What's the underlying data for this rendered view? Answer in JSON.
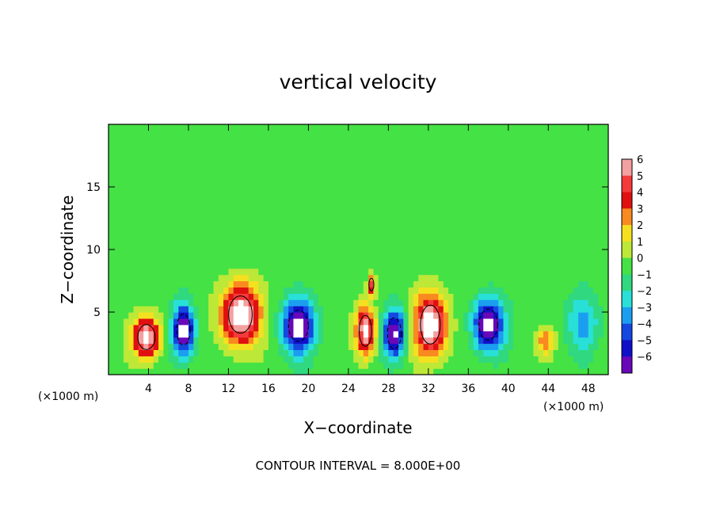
{
  "chart_data": {
    "type": "heatmap",
    "title": "vertical velocity",
    "xlabel": "X−coordinate",
    "ylabel": "Z−coordinate",
    "x_unit_left": "(×1000 m)",
    "x_unit_right": "(×1000 m)",
    "xlim": [
      0,
      50
    ],
    "ylim": [
      0,
      20
    ],
    "x_ticks": [
      4,
      8,
      12,
      16,
      20,
      24,
      28,
      32,
      36,
      40,
      44,
      48
    ],
    "y_ticks": [
      5,
      10,
      15
    ],
    "colorbar": {
      "levels": [
        "6",
        "5",
        "4",
        "3",
        "2",
        "1",
        "0",
        "−1",
        "−2",
        "−3",
        "−4",
        "−5",
        "−6"
      ],
      "colors": [
        "#f3a0a0",
        "#f53a3a",
        "#e01010",
        "#f88a20",
        "#f5e020",
        "#bde838",
        "#44e244",
        "#30d880",
        "#28e0d8",
        "#1c9ef0",
        "#1448e0",
        "#1010c8",
        "#6808b8"
      ]
    },
    "features": [
      {
        "x": 3.8,
        "z": 3.0,
        "sign": 1,
        "amp": 7.5,
        "sx": 1.4,
        "sz": 1.6
      },
      {
        "x": 7.5,
        "z": 3.6,
        "sign": -1,
        "amp": 7.5,
        "sx": 1.1,
        "sz": 2.0
      },
      {
        "x": 13.2,
        "z": 4.8,
        "sign": 1,
        "amp": 8.0,
        "sx": 1.9,
        "sz": 2.4
      },
      {
        "x": 19.0,
        "z": 3.9,
        "sign": -1,
        "amp": 7.5,
        "sx": 1.6,
        "sz": 2.0
      },
      {
        "x": 25.7,
        "z": 3.5,
        "sign": 1,
        "amp": 7.0,
        "sx": 1.0,
        "sz": 2.0
      },
      {
        "x": 26.3,
        "z": 7.2,
        "sign": 1,
        "amp": 5.0,
        "sx": 0.4,
        "sz": 0.8
      },
      {
        "x": 28.6,
        "z": 3.3,
        "sign": -1,
        "amp": 7.0,
        "sx": 1.1,
        "sz": 2.0
      },
      {
        "x": 32.2,
        "z": 4.0,
        "sign": 1,
        "amp": 8.0,
        "sx": 1.6,
        "sz": 2.5
      },
      {
        "x": 38.0,
        "z": 4.0,
        "sign": -1,
        "amp": 7.5,
        "sx": 1.5,
        "sz": 2.0
      },
      {
        "x": 43.7,
        "z": 2.7,
        "sign": 1,
        "amp": 3.2,
        "sx": 0.9,
        "sz": 1.0
      },
      {
        "x": 47.5,
        "z": 4.2,
        "sign": -1,
        "amp": 3.0,
        "sx": 1.5,
        "sz": 2.2
      }
    ],
    "grid": false,
    "legend": "colorbar right"
  },
  "footer": "CONTOUR INTERVAL = 8.000E+00"
}
